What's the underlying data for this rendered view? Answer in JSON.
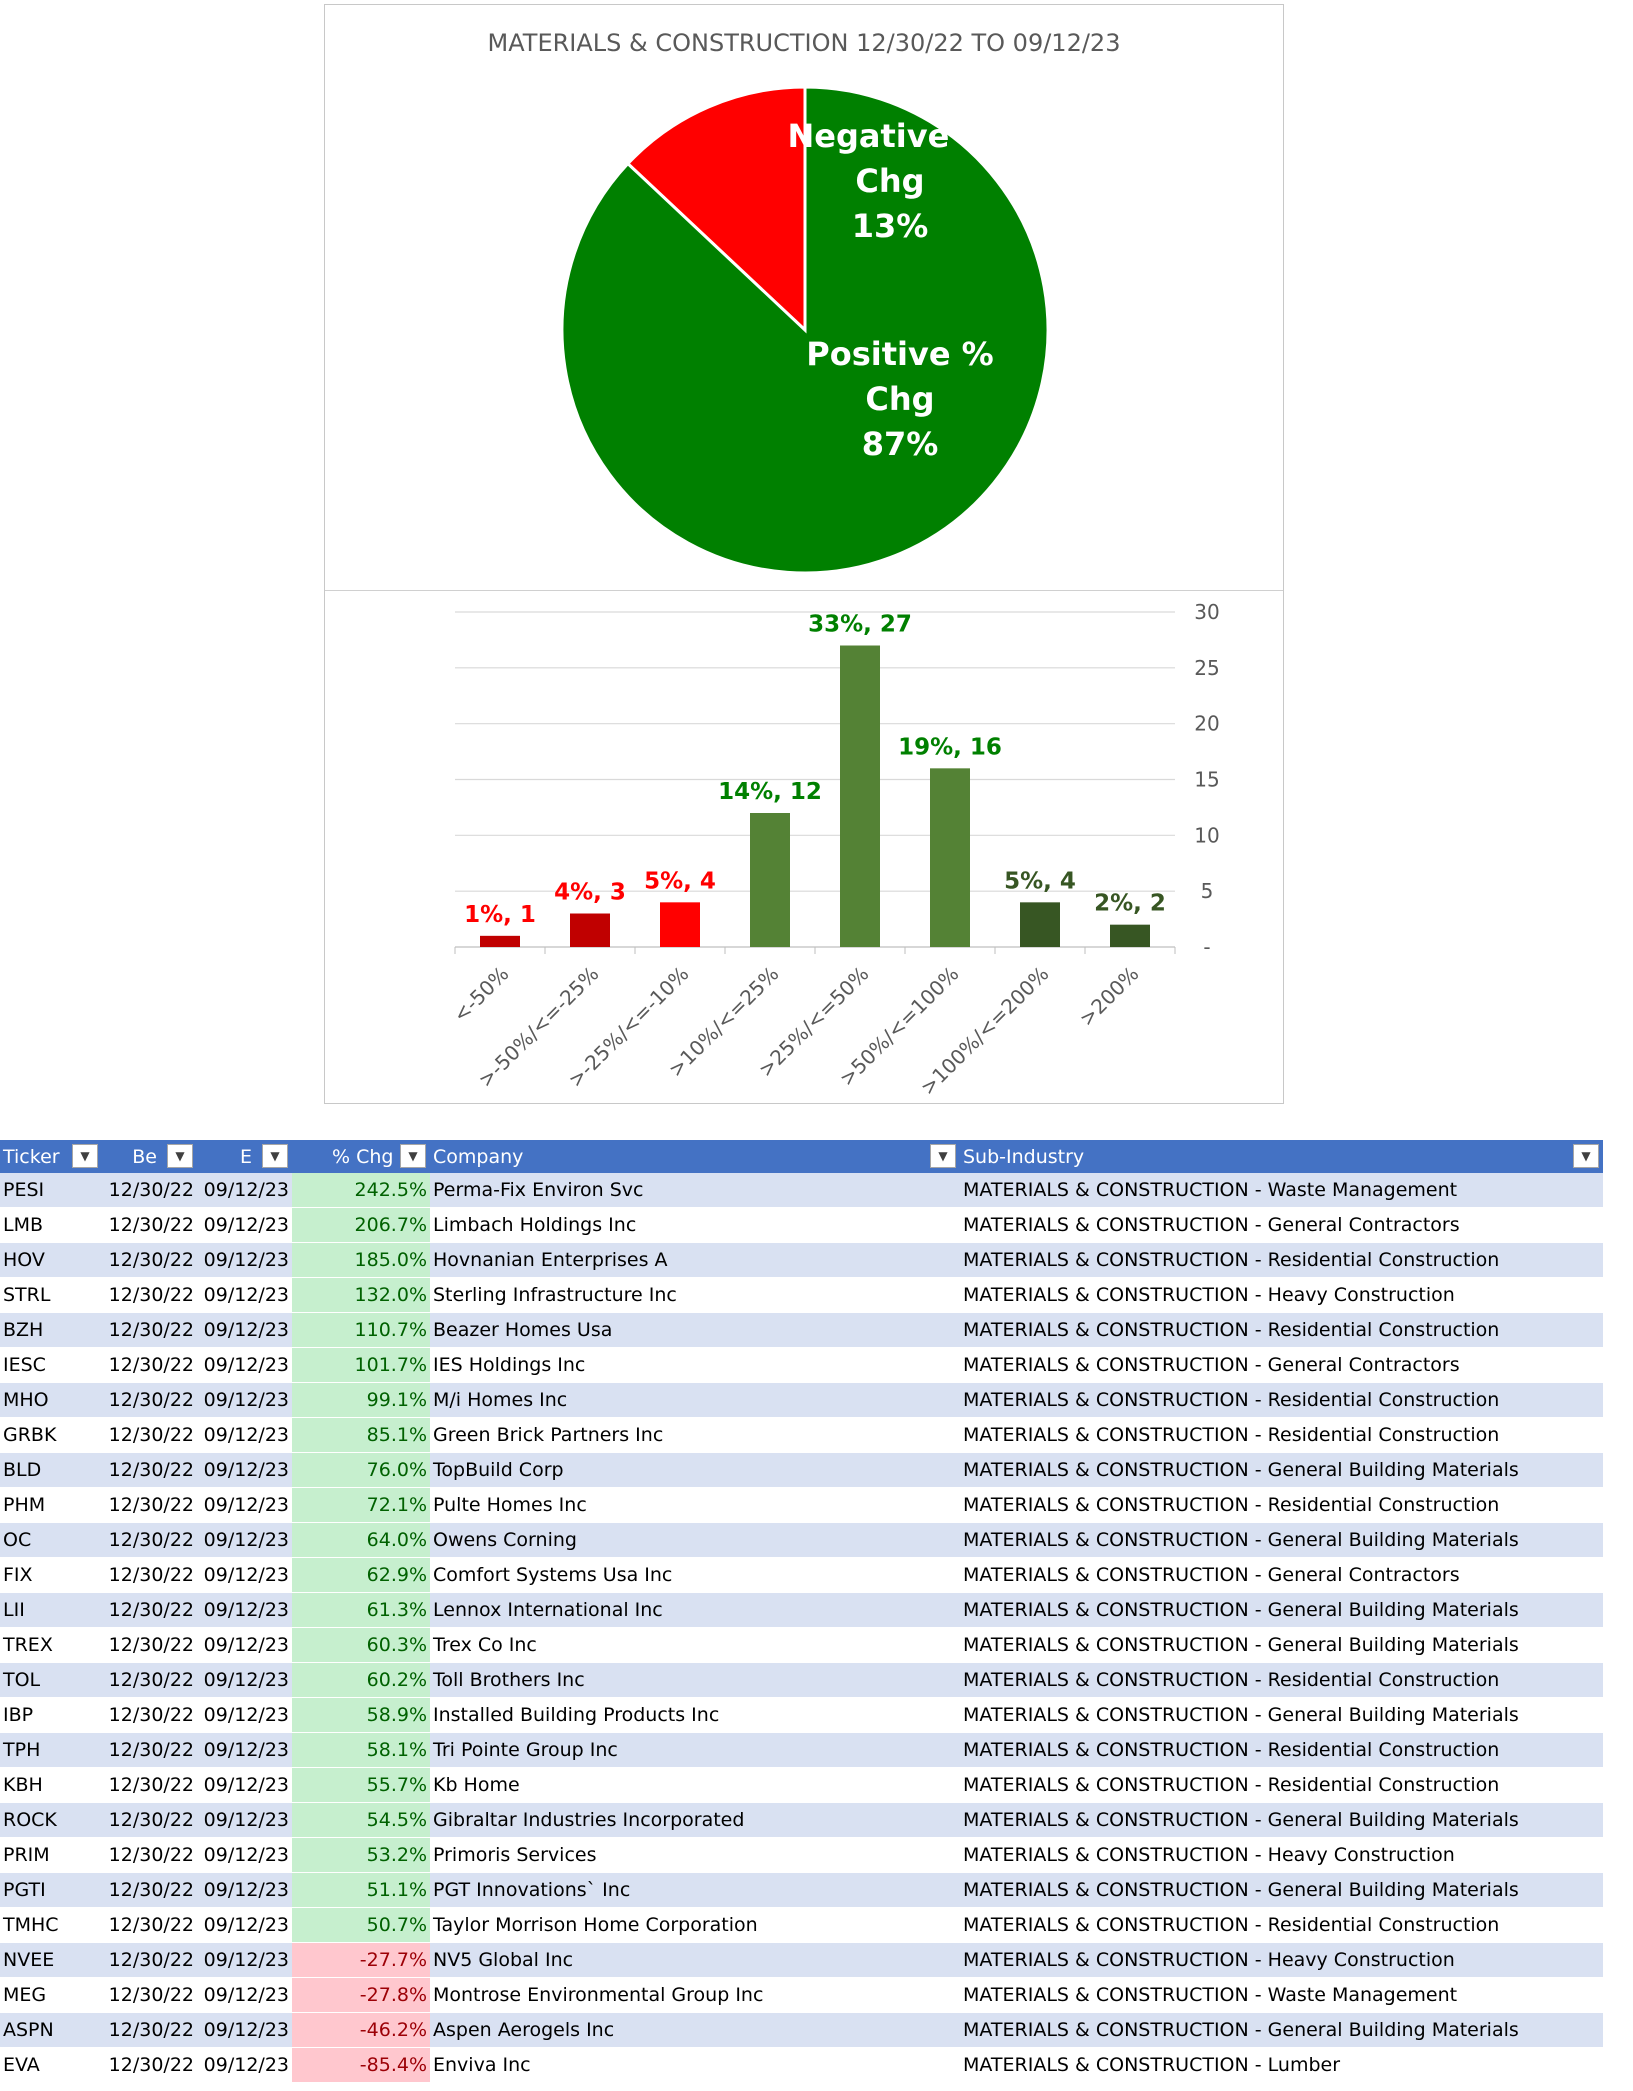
{
  "chart_data": [
    {
      "type": "pie",
      "title": "MATERIALS & CONSTRUCTION  12/30/22 TO 09/12/23",
      "slices": [
        {
          "name": "Negative % Chg",
          "value": 13,
          "label_lines": [
            "Negative %",
            "Chg",
            "13%"
          ],
          "color": "#ff0000"
        },
        {
          "name": "Positive % Chg",
          "value": 87,
          "label_lines": [
            "Positive %",
            "Chg",
            "87%"
          ],
          "color": "#008000"
        }
      ]
    },
    {
      "type": "bar",
      "categories": [
        "<-50%",
        ">-50%/<=-25%",
        ">-25%/<=-10%",
        ">10%/<=25%",
        ">25%/<=50%",
        ">50%/<=100%",
        ">100%/<=200%",
        ">200%"
      ],
      "values": [
        1,
        3,
        4,
        12,
        27,
        16,
        4,
        2
      ],
      "percents": [
        "1%",
        "4%",
        "5%",
        "14%",
        "33%",
        "19%",
        "5%",
        "2%"
      ],
      "bar_colors": [
        "#c00000",
        "#c00000",
        "#ff0000",
        "#548235",
        "#548235",
        "#548235",
        "#375623",
        "#375623"
      ],
      "label_colors": [
        "#ff0000",
        "#ff0000",
        "#ff0000",
        "#008000",
        "#008000",
        "#008000",
        "#375623",
        "#375623"
      ],
      "ylim": [
        0,
        30
      ],
      "yticks": [
        "-",
        "5",
        "10",
        "15",
        "20",
        "25",
        "30"
      ],
      "ytick_values": [
        0,
        5,
        10,
        15,
        20,
        25,
        30
      ],
      "y_axis_side": "right",
      "grid": true
    }
  ],
  "table": {
    "headers": [
      "Ticker",
      "Be",
      "E",
      "% Chg",
      "Company",
      "Sub-Industry"
    ],
    "rows": [
      [
        "PESI",
        "12/30/22",
        "09/12/23",
        "242.5%",
        "Perma-Fix Environ Svc",
        "MATERIALS & CONSTRUCTION - Waste Management"
      ],
      [
        "LMB",
        "12/30/22",
        "09/12/23",
        "206.7%",
        "Limbach Holdings Inc",
        "MATERIALS & CONSTRUCTION - General Contractors"
      ],
      [
        "HOV",
        "12/30/22",
        "09/12/23",
        "185.0%",
        "Hovnanian Enterprises A",
        "MATERIALS & CONSTRUCTION - Residential Construction"
      ],
      [
        "STRL",
        "12/30/22",
        "09/12/23",
        "132.0%",
        "Sterling Infrastructure Inc",
        "MATERIALS & CONSTRUCTION - Heavy Construction"
      ],
      [
        "BZH",
        "12/30/22",
        "09/12/23",
        "110.7%",
        "Beazer Homes Usa",
        "MATERIALS & CONSTRUCTION - Residential Construction"
      ],
      [
        "IESC",
        "12/30/22",
        "09/12/23",
        "101.7%",
        "IES Holdings Inc",
        "MATERIALS & CONSTRUCTION - General Contractors"
      ],
      [
        "MHO",
        "12/30/22",
        "09/12/23",
        "99.1%",
        "M/i Homes Inc",
        "MATERIALS & CONSTRUCTION - Residential Construction"
      ],
      [
        "GRBK",
        "12/30/22",
        "09/12/23",
        "85.1%",
        "Green Brick Partners Inc",
        "MATERIALS & CONSTRUCTION - Residential Construction"
      ],
      [
        "BLD",
        "12/30/22",
        "09/12/23",
        "76.0%",
        "TopBuild Corp",
        "MATERIALS & CONSTRUCTION - General Building Materials"
      ],
      [
        "PHM",
        "12/30/22",
        "09/12/23",
        "72.1%",
        "Pulte Homes Inc",
        "MATERIALS & CONSTRUCTION - Residential Construction"
      ],
      [
        "OC",
        "12/30/22",
        "09/12/23",
        "64.0%",
        "Owens Corning",
        "MATERIALS & CONSTRUCTION - General Building Materials"
      ],
      [
        "FIX",
        "12/30/22",
        "09/12/23",
        "62.9%",
        "Comfort Systems Usa Inc",
        "MATERIALS & CONSTRUCTION - General Contractors"
      ],
      [
        "LII",
        "12/30/22",
        "09/12/23",
        "61.3%",
        "Lennox International Inc",
        "MATERIALS & CONSTRUCTION - General Building Materials"
      ],
      [
        "TREX",
        "12/30/22",
        "09/12/23",
        "60.3%",
        "Trex Co Inc",
        "MATERIALS & CONSTRUCTION - General Building Materials"
      ],
      [
        "TOL",
        "12/30/22",
        "09/12/23",
        "60.2%",
        "Toll Brothers Inc",
        "MATERIALS & CONSTRUCTION - Residential Construction"
      ],
      [
        "IBP",
        "12/30/22",
        "09/12/23",
        "58.9%",
        "Installed Building Products Inc",
        "MATERIALS & CONSTRUCTION - General Building Materials"
      ],
      [
        "TPH",
        "12/30/22",
        "09/12/23",
        "58.1%",
        "Tri Pointe Group Inc",
        "MATERIALS & CONSTRUCTION - Residential Construction"
      ],
      [
        "KBH",
        "12/30/22",
        "09/12/23",
        "55.7%",
        "Kb Home",
        "MATERIALS & CONSTRUCTION - Residential Construction"
      ],
      [
        "ROCK",
        "12/30/22",
        "09/12/23",
        "54.5%",
        "Gibraltar Industries Incorporated",
        "MATERIALS & CONSTRUCTION - General Building Materials"
      ],
      [
        "PRIM",
        "12/30/22",
        "09/12/23",
        "53.2%",
        "Primoris Services",
        "MATERIALS & CONSTRUCTION - Heavy Construction"
      ],
      [
        "PGTI",
        "12/30/22",
        "09/12/23",
        "51.1%",
        "PGT Innovations` Inc",
        "MATERIALS & CONSTRUCTION - General Building Materials"
      ],
      [
        "TMHC",
        "12/30/22",
        "09/12/23",
        "50.7%",
        "Taylor Morrison Home Corporation",
        "MATERIALS & CONSTRUCTION - Residential Construction"
      ],
      [
        "NVEE",
        "12/30/22",
        "09/12/23",
        "-27.7%",
        "NV5 Global Inc",
        "MATERIALS & CONSTRUCTION - Heavy Construction"
      ],
      [
        "MEG",
        "12/30/22",
        "09/12/23",
        "-27.8%",
        "Montrose Environmental Group Inc",
        "MATERIALS & CONSTRUCTION - Waste Management"
      ],
      [
        "ASPN",
        "12/30/22",
        "09/12/23",
        "-46.2%",
        "Aspen Aerogels Inc",
        "MATERIALS & CONSTRUCTION - General Building Materials"
      ],
      [
        "EVA",
        "12/30/22",
        "09/12/23",
        "-85.4%",
        "Enviva Inc",
        "MATERIALS & CONSTRUCTION - Lumber"
      ]
    ]
  },
  "filter_icon": "dropdown-arrow-icon",
  "colors": {
    "header_bg": "#4472c4",
    "row_band": "#d9e1f2",
    "positive_fill": "#c6efce",
    "positive_text": "#006100",
    "negative_fill": "#ffc7ce",
    "negative_text": "#9c0006"
  }
}
